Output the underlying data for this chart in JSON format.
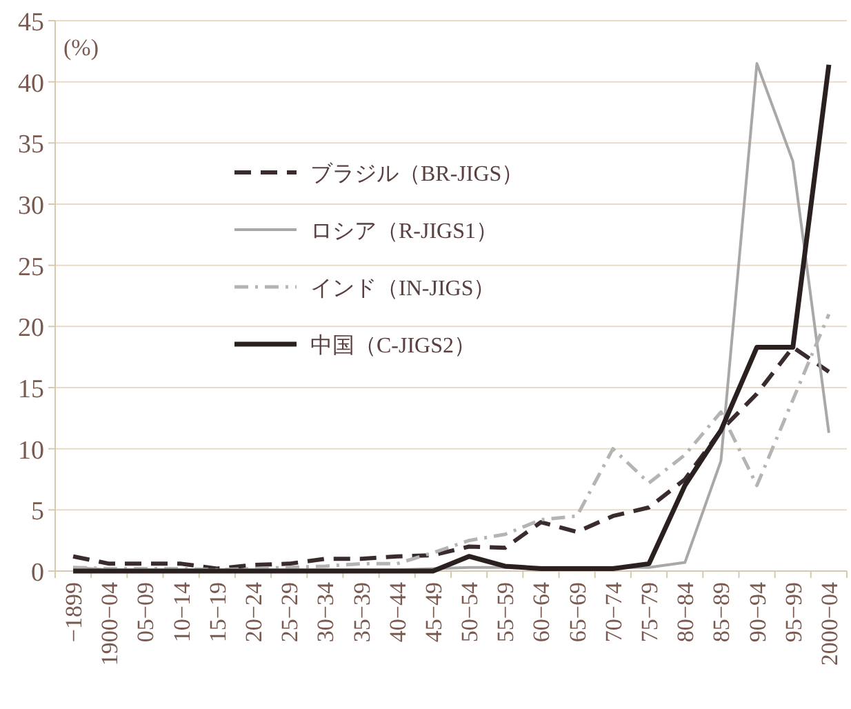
{
  "chart_data": {
    "type": "line",
    "ylabel": "(%)",
    "categories": [
      "−1899",
      "1900−04",
      "05−09",
      "10−14",
      "15−19",
      "20−24",
      "25−29",
      "30−34",
      "35−39",
      "40−44",
      "45−49",
      "50−54",
      "55−59",
      "60−64",
      "65−69",
      "70−74",
      "75−79",
      "80−84",
      "85−89",
      "90−94",
      "95−99",
      "2000−04"
    ],
    "series": [
      {
        "name": "ブラジル（BR-JIGS）",
        "color": "#3a2c2c",
        "line_style": "dashed",
        "values": [
          1.2,
          0.6,
          0.6,
          0.6,
          0.2,
          0.5,
          0.6,
          1.0,
          1.0,
          1.2,
          1.3,
          2.0,
          1.9,
          4.0,
          3.2,
          4.5,
          5.2,
          7.5,
          11.5,
          14.5,
          18.3,
          16.3
        ]
      },
      {
        "name": "ロシア（R-JIGS1）",
        "color": "#a8a8a8",
        "line_style": "solid",
        "values": [
          0.3,
          0.1,
          0.1,
          0.1,
          0.1,
          0.1,
          0.1,
          0.1,
          0.1,
          0.1,
          0.2,
          0.3,
          0.3,
          0.3,
          0.3,
          0.3,
          0.3,
          0.7,
          9.0,
          41.5,
          33.5,
          11.3
        ]
      },
      {
        "name": "インド（IN-JIGS）",
        "color": "#b4b4b4",
        "line_style": "dashdot",
        "values": [
          0.3,
          0.2,
          0.2,
          0.2,
          0.1,
          0.2,
          0.3,
          0.4,
          0.6,
          0.6,
          1.5,
          2.5,
          3.0,
          4.2,
          4.5,
          10.0,
          7.2,
          9.5,
          13.0,
          7.0,
          14.0,
          21.0
        ]
      },
      {
        "name": "中国（C-JIGS2）",
        "color": "#2a2020",
        "line_style": "solid",
        "values": [
          0,
          0,
          0,
          0,
          0,
          0,
          0,
          0,
          0,
          0,
          0,
          1.2,
          0.4,
          0.2,
          0.2,
          0.2,
          0.6,
          7.0,
          11.5,
          18.3,
          18.3,
          41.4
        ]
      }
    ],
    "ylim": [
      0,
      45
    ],
    "yticks": [
      0,
      5,
      10,
      15,
      20,
      25,
      30,
      35,
      40,
      45
    ],
    "grid": "y",
    "legend": "center",
    "marker": "none"
  }
}
